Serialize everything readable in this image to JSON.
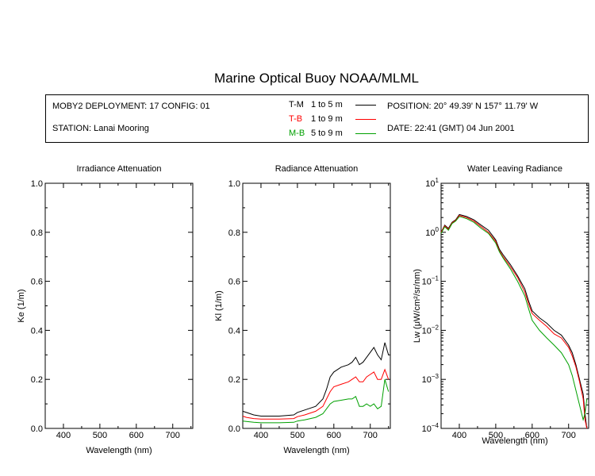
{
  "header": {
    "title": "Marine Optical Buoy NOAA/MLML",
    "deployment": "MOBY2 DEPLOYMENT: 17 CONFIG: 01",
    "station": "STATION: Lanai Mooring",
    "position": "POSITION: 20° 49.39' N   157° 11.79' W",
    "date": "DATE: 22:41 (GMT) 04 Jun 2001"
  },
  "legend": [
    {
      "code": "T-M",
      "range": "1 to 5  m",
      "color": "#000000"
    },
    {
      "code": "T-B",
      "range": "1 to 9  m",
      "color": "#ff0000"
    },
    {
      "code": "M-B",
      "range": "5 to 9  m",
      "color": "#00a000"
    }
  ],
  "chart_data": [
    {
      "type": "line",
      "title": "Irradiance Attenuation",
      "xlabel": "Wavelength (nm)",
      "ylabel": "Ke  (1/m)",
      "xlim": [
        350,
        755
      ],
      "ylim": [
        0,
        1
      ],
      "xticks": [
        "400",
        "500",
        "600",
        "700"
      ],
      "yticks": [
        "0.0",
        "0.2",
        "0.4",
        "0.6",
        "0.8",
        "1.0"
      ],
      "series": []
    },
    {
      "type": "line",
      "title": "Radiance Attenuation",
      "xlabel": "Wavelength (nm)",
      "ylabel": "Kl  (1/m)",
      "xlim": [
        350,
        755
      ],
      "ylim": [
        0,
        1
      ],
      "xticks": [
        "400",
        "500",
        "600",
        "700"
      ],
      "yticks": [
        "0.0",
        "0.2",
        "0.4",
        "0.6",
        "0.8",
        "1.0"
      ],
      "series": [
        {
          "name": "T-M",
          "color": "#000000",
          "x": [
            350,
            360,
            380,
            400,
            450,
            490,
            500,
            520,
            550,
            570,
            580,
            590,
            600,
            620,
            640,
            650,
            660,
            670,
            680,
            690,
            700,
            710,
            720,
            730,
            740,
            750
          ],
          "y": [
            0.07,
            0.065,
            0.055,
            0.05,
            0.05,
            0.055,
            0.065,
            0.075,
            0.09,
            0.12,
            0.16,
            0.21,
            0.23,
            0.25,
            0.26,
            0.27,
            0.29,
            0.26,
            0.27,
            0.29,
            0.31,
            0.33,
            0.3,
            0.28,
            0.35,
            0.3
          ]
        },
        {
          "name": "T-B",
          "color": "#ff0000",
          "x": [
            350,
            360,
            380,
            400,
            450,
            490,
            500,
            520,
            550,
            570,
            580,
            590,
            600,
            620,
            640,
            650,
            660,
            670,
            680,
            690,
            700,
            710,
            720,
            730,
            740,
            750
          ],
          "y": [
            0.05,
            0.045,
            0.04,
            0.038,
            0.038,
            0.04,
            0.048,
            0.055,
            0.07,
            0.09,
            0.12,
            0.15,
            0.17,
            0.18,
            0.19,
            0.2,
            0.21,
            0.19,
            0.19,
            0.21,
            0.22,
            0.23,
            0.2,
            0.2,
            0.24,
            0.2
          ]
        },
        {
          "name": "M-B",
          "color": "#00a000",
          "x": [
            350,
            360,
            380,
            400,
            450,
            490,
            500,
            520,
            550,
            570,
            580,
            590,
            600,
            620,
            640,
            650,
            660,
            670,
            680,
            690,
            700,
            710,
            720,
            730,
            740,
            750
          ],
          "y": [
            0.03,
            0.028,
            0.025,
            0.023,
            0.023,
            0.025,
            0.03,
            0.035,
            0.045,
            0.06,
            0.08,
            0.1,
            0.11,
            0.115,
            0.12,
            0.12,
            0.13,
            0.09,
            0.09,
            0.1,
            0.09,
            0.1,
            0.08,
            0.09,
            0.2,
            0.15
          ]
        }
      ]
    },
    {
      "type": "line",
      "title": "Water Leaving Radiance",
      "xlabel": "Wavelength (nm)",
      "ylabel": "Lw  (μW/cm²/sr/nm)",
      "xlim": [
        350,
        755
      ],
      "ylim": [
        0.0001,
        10
      ],
      "yscale": "log",
      "xticks": [
        "400",
        "500",
        "600",
        "700"
      ],
      "series": [
        {
          "name": "T-M",
          "color": "#000000",
          "x": [
            350,
            360,
            370,
            380,
            390,
            400,
            410,
            420,
            440,
            460,
            480,
            500,
            510,
            520,
            540,
            560,
            580,
            590,
            600,
            620,
            640,
            660,
            680,
            700,
            710,
            720,
            730,
            740,
            745,
            750
          ],
          "y": [
            1.0,
            1.4,
            1.2,
            1.6,
            1.8,
            2.3,
            2.2,
            2.1,
            1.8,
            1.4,
            1.1,
            0.7,
            0.45,
            0.35,
            0.22,
            0.13,
            0.07,
            0.04,
            0.025,
            0.018,
            0.014,
            0.01,
            0.008,
            0.005,
            0.0035,
            0.002,
            0.001,
            0.0005,
            0.0002,
            0.0001
          ]
        },
        {
          "name": "T-B",
          "color": "#ff0000",
          "x": [
            350,
            360,
            370,
            380,
            390,
            400,
            410,
            420,
            440,
            460,
            480,
            500,
            510,
            520,
            540,
            560,
            580,
            590,
            600,
            620,
            640,
            660,
            680,
            700,
            710,
            720,
            730,
            740,
            745,
            750
          ],
          "y": [
            1.0,
            1.35,
            1.15,
            1.55,
            1.75,
            2.2,
            2.1,
            2.0,
            1.7,
            1.3,
            1.0,
            0.65,
            0.42,
            0.32,
            0.2,
            0.12,
            0.06,
            0.035,
            0.022,
            0.016,
            0.012,
            0.0085,
            0.007,
            0.0045,
            0.003,
            0.0018,
            0.0009,
            0.0004,
            0.00015,
            0.0001
          ]
        },
        {
          "name": "M-B",
          "color": "#00a000",
          "x": [
            350,
            360,
            370,
            380,
            390,
            400,
            410,
            420,
            440,
            460,
            480,
            500,
            510,
            520,
            540,
            560,
            580,
            590,
            600,
            620,
            640,
            660,
            680,
            700,
            710,
            720,
            730,
            740,
            745,
            750
          ],
          "y": [
            0.95,
            1.3,
            1.1,
            1.5,
            1.7,
            2.1,
            2.0,
            1.9,
            1.6,
            1.2,
            0.95,
            0.6,
            0.4,
            0.3,
            0.18,
            0.1,
            0.05,
            0.028,
            0.016,
            0.01,
            0.007,
            0.005,
            0.0035,
            0.002,
            0.0012,
            0.0006,
            0.0003,
            0.00015,
            0.0002,
            0.0004
          ]
        }
      ]
    }
  ]
}
